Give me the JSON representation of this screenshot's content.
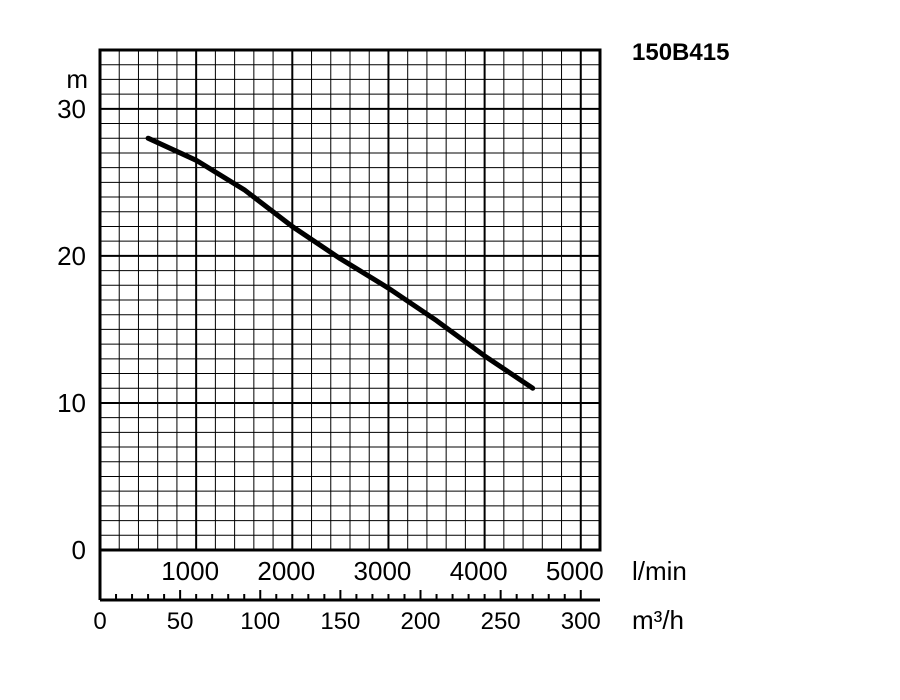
{
  "chart_data": {
    "type": "line",
    "title": "150B415",
    "ylabel": "m",
    "xlabel_top": "l/min",
    "xlabel_bottom": "m³/h",
    "ylim": [
      0,
      34
    ],
    "xlim_lmin": [
      0,
      5200
    ],
    "xlim_m3h": [
      0,
      312
    ],
    "grid": true,
    "y_ticks": [
      "0",
      "10",
      "20",
      "30"
    ],
    "x_ticks_lmin": [
      "1000",
      "2000",
      "3000",
      "4000",
      "5000"
    ],
    "x_ticks_m3h": [
      "0",
      "50",
      "100",
      "150",
      "200",
      "250",
      "300"
    ],
    "series": [
      {
        "x_lmin": [
          500,
          1000,
          1500,
          2000,
          2500,
          3000,
          3500,
          4000,
          4500
        ],
        "y": [
          28.0,
          26.5,
          24.5,
          22.0,
          19.8,
          17.8,
          15.6,
          13.2,
          11.0
        ]
      }
    ]
  }
}
